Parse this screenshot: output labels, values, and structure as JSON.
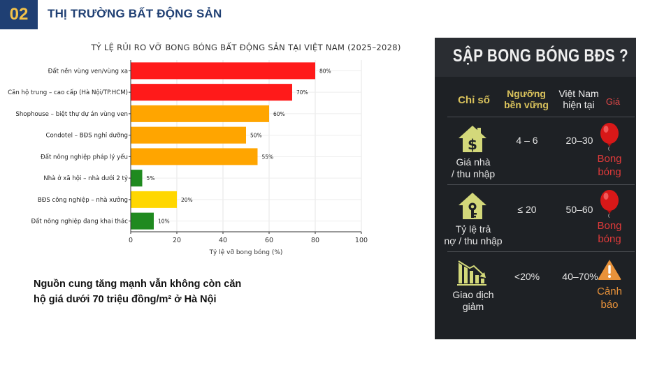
{
  "header": {
    "number": "02",
    "title": "THỊ TRƯỜNG BẤT ĐỘNG SẢN"
  },
  "chart_data": {
    "type": "bar",
    "orientation": "horizontal",
    "title": "TỶ LỆ RỦI RO VỠ BONG BÓNG BẤT ĐỘNG SẢN TẠI VIỆT NAM (2025–2028)",
    "xlabel": "Tỷ lệ vỡ bong bóng (%)",
    "ylabel": "",
    "xlim": [
      0,
      100
    ],
    "xticks": [
      "0",
      "20",
      "40",
      "60",
      "80",
      "100"
    ],
    "grid": true,
    "categories": [
      "Đất nền vùng ven/vùng xa",
      "Căn hộ trung – cao cấp (Hà Nội/TP.HCM)",
      "Shophouse – biệt thự dự án vùng ven",
      "Condotel – BĐS nghỉ dưỡng",
      "Đất nông nghiệp pháp lý yếu",
      "Nhà ở xã hội – nhà dưới 2 tỷ",
      "BĐS công nghiệp – nhà xưởng",
      "Đất nông nghiệp đang khai thác"
    ],
    "values": [
      80,
      70,
      60,
      50,
      55,
      5,
      20,
      10
    ],
    "value_labels": [
      "80%",
      "70%",
      "60%",
      "50%",
      "55%",
      "5%",
      "20%",
      "10%"
    ],
    "colors": [
      "#ff1a1a",
      "#ff1a1a",
      "#ffa500",
      "#ffa500",
      "#ffa500",
      "#1f8a1f",
      "#ffd700",
      "#1f8a1f"
    ]
  },
  "note": {
    "line1": "Nguồn cung tăng mạnh vẫn không còn căn",
    "line2": "hộ giá dưới 70 triệu đồng/m² ở Hà Nội"
  },
  "panel": {
    "title": "SẬP BONG BÓNG BĐS ?",
    "headers": {
      "indicator": "Chỉ số",
      "threshold_l1": "Ngưỡng",
      "threshold_l2": "bền vững",
      "vn_l1": "Việt Nam",
      "vn_l2": "hiện tại",
      "price": "Giá"
    },
    "rows": [
      {
        "icon": "house-dollar-icon",
        "label_l1": "Giá nhà",
        "label_l2": "/ thu nhập",
        "threshold": "4 – 6",
        "current": "20–30",
        "status_l1": "Bong",
        "status_l2": "bóng",
        "status_icon": "red-balloon-icon"
      },
      {
        "icon": "house-key-icon",
        "label_l1": "Tỷ lệ trả",
        "label_l2": "nợ / thu nhập",
        "threshold": "≤ 20",
        "current": "50–60",
        "status_l1": "Bong",
        "status_l2": "bóng",
        "status_icon": "red-balloon-icon"
      },
      {
        "icon": "declining-chart-icon",
        "label_l1": "Giao dịch",
        "label_l2": "giảm",
        "threshold": "<20%",
        "current": "40–70%",
        "status_l1": "Cảnh",
        "status_l2": "báo",
        "status_icon": "warning-triangle-icon"
      }
    ],
    "colors": {
      "gold": "#d9c25c",
      "red": "#e03a3a",
      "orange": "#e8923a",
      "icon_fill": "#d3d87a"
    }
  }
}
